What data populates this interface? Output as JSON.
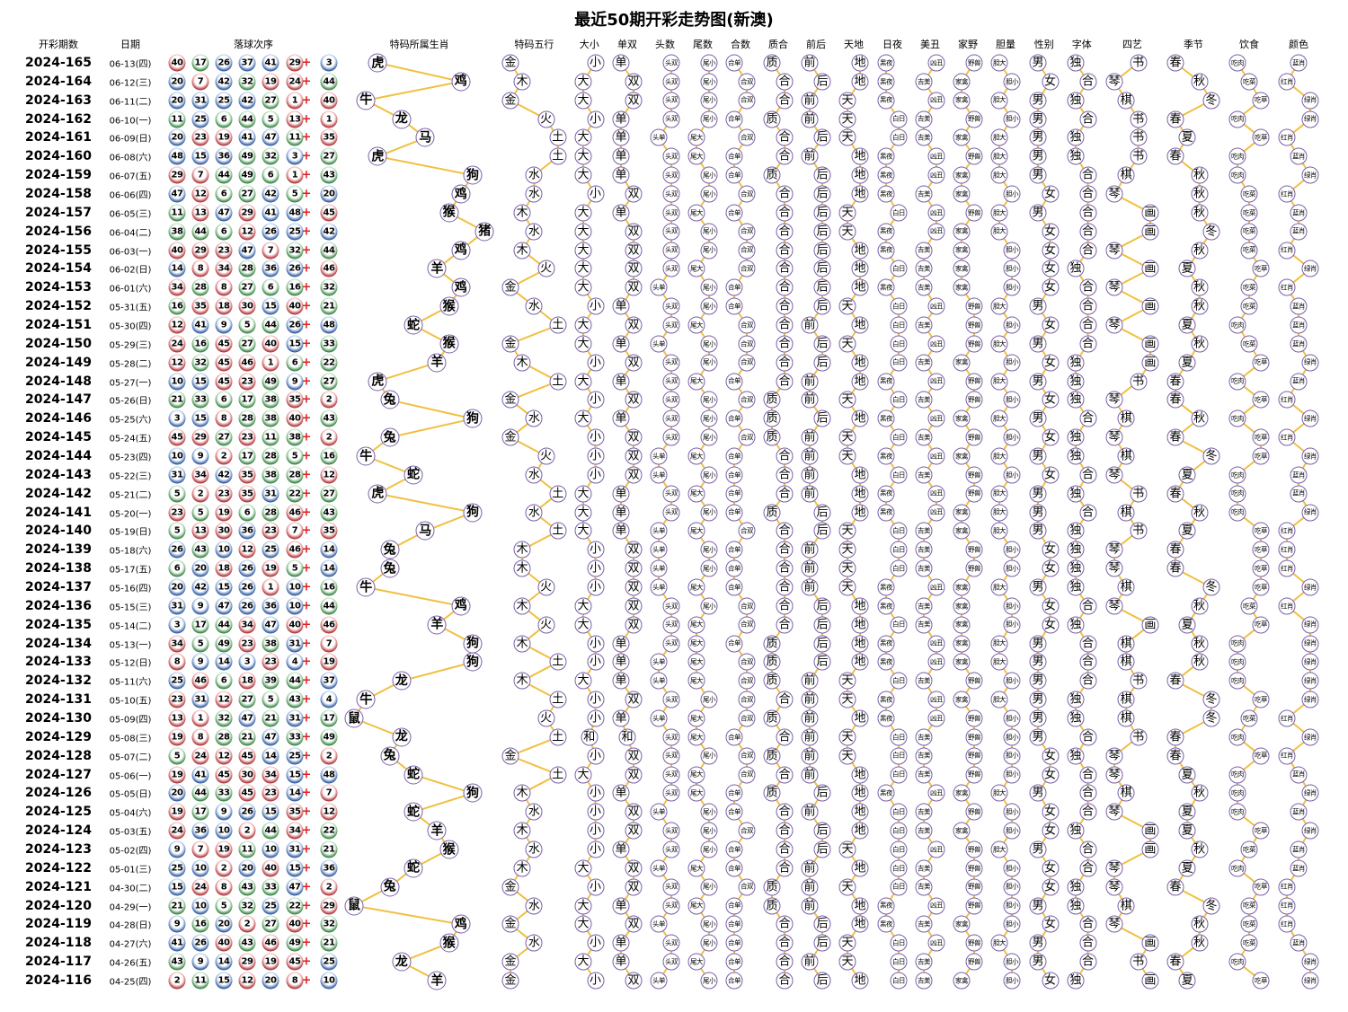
{
  "title": "最近50期开彩走势图(新澳)",
  "headers": {
    "issue": "开彩期数",
    "date": "日期",
    "balls": "落球次序"
  },
  "colors": {
    "line": "#f0c040",
    "node_border": "#7a5fa8",
    "ball_red": "#d9262c",
    "ball_blue": "#1f5fc4",
    "ball_green": "#2a9b3a",
    "plus": "#dd2222"
  },
  "ball_color_groups": {
    "red": [
      1,
      2,
      7,
      8,
      12,
      13,
      18,
      19,
      23,
      24,
      29,
      30,
      34,
      35,
      40,
      45,
      46
    ],
    "blue": [
      3,
      4,
      9,
      10,
      14,
      15,
      20,
      25,
      26,
      31,
      36,
      37,
      41,
      42,
      47,
      48
    ],
    "green": [
      5,
      6,
      11,
      16,
      17,
      21,
      22,
      27,
      28,
      32,
      33,
      38,
      39,
      43,
      44,
      49
    ]
  },
  "plus_sign": "+",
  "columns": [
    {
      "header": "特码所属生肖",
      "options": [
        "鼠",
        "牛",
        "虎",
        "兔",
        "龙",
        "蛇",
        "马",
        "羊",
        "猴",
        "鸡",
        "狗",
        "猪"
      ]
    },
    {
      "header": "特码五行",
      "options": [
        "金",
        "木",
        "水",
        "火",
        "土"
      ]
    },
    {
      "header": "大小",
      "options": [
        "大",
        "小"
      ]
    },
    {
      "header": "单双",
      "options": [
        "单",
        "双"
      ]
    },
    {
      "header": "头数",
      "options": [
        "头单",
        "头双"
      ]
    },
    {
      "header": "尾数",
      "options": [
        "尾大",
        "尾小"
      ]
    },
    {
      "header": "合数",
      "options": [
        "合单",
        "合双"
      ]
    },
    {
      "header": "质合",
      "options": [
        "质",
        "合"
      ]
    },
    {
      "header": "前后",
      "options": [
        "前",
        "后"
      ]
    },
    {
      "header": "天地",
      "options": [
        "天",
        "地"
      ]
    },
    {
      "header": "日夜",
      "options": [
        "黑夜",
        "白日"
      ]
    },
    {
      "header": "美丑",
      "options": [
        "吉美",
        "凶丑"
      ]
    },
    {
      "header": "家野",
      "options": [
        "家禽",
        "野兽"
      ]
    },
    {
      "header": "胆量",
      "options": [
        "胆大",
        "胆小"
      ]
    },
    {
      "header": "性别",
      "options": [
        "男",
        "女"
      ]
    },
    {
      "header": "字体",
      "options": [
        "独",
        "合"
      ]
    },
    {
      "header": "四艺",
      "options": [
        "琴",
        "棋",
        "书",
        "画"
      ]
    },
    {
      "header": "季节",
      "options": [
        "春",
        "夏",
        "秋",
        "冬"
      ]
    },
    {
      "header": "饮食",
      "options": [
        "吃肉",
        "吃菜",
        "吃草"
      ]
    },
    {
      "header": "颜色",
      "options": [
        "红肖",
        "蓝肖",
        "绿肖"
      ]
    }
  ],
  "chart_data": {
    "type": "table",
    "title": "最近50期开彩走势图(新澳)",
    "rows": [
      {
        "issue": "2024-165",
        "date": "06-13(四)",
        "balls": [
          40,
          17,
          26,
          37,
          41,
          29,
          3
        ],
        "attrs": "虎 金 小 单 头双 尾小 合单 质 前 地 黑夜 凶丑 野兽 胆大 男 独 书 春 吃肉 蓝肖"
      },
      {
        "issue": "2024-164",
        "date": "06-12(三)",
        "balls": [
          20,
          7,
          42,
          32,
          19,
          24,
          44
        ],
        "attrs": "鸡 木 大 双 头双 尾小 合双 合 后 地 黑夜 吉美 家禽 胆小 女 合 琴 秋 吃菜 红肖"
      },
      {
        "issue": "2024-163",
        "date": "06-11(二)",
        "balls": [
          20,
          31,
          25,
          42,
          27,
          1,
          40
        ],
        "attrs": "牛 金 大 双 头双 尾小 合双 合 前 天 黑夜 凶丑 家禽 胆大 男 独 棋 冬 吃草 绿肖"
      },
      {
        "issue": "2024-162",
        "date": "06-10(一)",
        "balls": [
          11,
          25,
          6,
          44,
          5,
          13,
          1
        ],
        "attrs": "龙 火 小 单 头双 尾小 合单 质 前 天 白日 吉美 野兽 胆小 男 合 书 春 吃肉 绿肖"
      },
      {
        "issue": "2024-161",
        "date": "06-09(日)",
        "balls": [
          20,
          23,
          19,
          41,
          47,
          11,
          35
        ],
        "attrs": "马 土 大 单 头单 尾大 合双 合 后 天 白日 吉美 家禽 胆大 男 独 书 夏 吃草 红肖"
      },
      {
        "issue": "2024-160",
        "date": "06-08(六)",
        "balls": [
          48,
          15,
          36,
          49,
          32,
          3,
          27
        ],
        "attrs": "虎 土 大 单 头双 尾大 合单 合 前 地 黑夜 凶丑 野兽 胆大 男 独 书 春 吃肉 蓝肖"
      },
      {
        "issue": "2024-159",
        "date": "06-07(五)",
        "balls": [
          29,
          7,
          44,
          49,
          6,
          1,
          43
        ],
        "attrs": "狗 水 大 单 头双 尾小 合单 质 后 地 黑夜 凶丑 家禽 胆大 男 合 棋 秋 吃肉 绿肖"
      },
      {
        "issue": "2024-158",
        "date": "06-06(四)",
        "balls": [
          47,
          12,
          6,
          27,
          42,
          5,
          20
        ],
        "attrs": "鸡 水 小 双 头双 尾小 合双 合 后 地 黑夜 吉美 家禽 胆小 女 合 琴 秋 吃菜 红肖"
      },
      {
        "issue": "2024-157",
        "date": "06-05(三)",
        "balls": [
          11,
          13,
          47,
          29,
          41,
          48,
          45
        ],
        "attrs": "猴 木 大 单 头双 尾大 合单 合 后 天 白日 凶丑 野兽 胆大 男 合 画 秋 吃菜 蓝肖"
      },
      {
        "issue": "2024-156",
        "date": "06-04(二)",
        "balls": [
          38,
          44,
          6,
          12,
          26,
          25,
          42
        ],
        "attrs": "猪 水 大 双 头双 尾小 合双 合 后 天 黑夜 凶丑 家禽 胆大 女 合 画 冬 吃菜 蓝肖"
      },
      {
        "issue": "2024-155",
        "date": "06-03(一)",
        "balls": [
          40,
          29,
          23,
          47,
          7,
          32,
          44
        ],
        "attrs": "鸡 木 大 双 头双 尾小 合双 合 后 地 黑夜 吉美 家禽 胆小 女 合 琴 秋 吃菜 红肖"
      },
      {
        "issue": "2024-154",
        "date": "06-02(日)",
        "balls": [
          14,
          8,
          34,
          28,
          36,
          26,
          46
        ],
        "attrs": "羊 火 大 双 头双 尾大 合双 合 后 地 白日 吉美 家禽 胆小 女 独 画 夏 吃草 绿肖"
      },
      {
        "issue": "2024-153",
        "date": "06-01(六)",
        "balls": [
          34,
          28,
          8,
          27,
          6,
          16,
          32
        ],
        "attrs": "鸡 金 大 双 头单 尾小 合单 合 后 地 黑夜 吉美 家禽 胆小 女 合 琴 秋 吃菜 红肖"
      },
      {
        "issue": "2024-152",
        "date": "05-31(五)",
        "balls": [
          16,
          35,
          18,
          30,
          15,
          40,
          21
        ],
        "attrs": "猴 水 小 单 头双 尾小 合单 合 后 天 白日 凶丑 野兽 胆大 男 合 画 秋 吃菜 蓝肖"
      },
      {
        "issue": "2024-151",
        "date": "05-30(四)",
        "balls": [
          12,
          41,
          9,
          5,
          44,
          26,
          48
        ],
        "attrs": "蛇 土 大 双 头双 尾大 合双 合 前 地 白日 吉美 野兽 胆小 女 合 琴 夏 吃肉 蓝肖"
      },
      {
        "issue": "2024-150",
        "date": "05-29(三)",
        "balls": [
          24,
          16,
          45,
          27,
          40,
          15,
          33
        ],
        "attrs": "猴 金 大 单 头单 尾小 合双 合 后 天 白日 凶丑 野兽 胆大 男 合 画 秋 吃菜 蓝肖"
      },
      {
        "issue": "2024-149",
        "date": "05-28(二)",
        "balls": [
          12,
          32,
          45,
          46,
          1,
          6,
          22
        ],
        "attrs": "羊 木 小 双 头双 尾小 合双 合 后 地 白日 吉美 家禽 胆小 女 独 画 夏 吃草 绿肖"
      },
      {
        "issue": "2024-148",
        "date": "05-27(一)",
        "balls": [
          10,
          15,
          45,
          23,
          49,
          9,
          27
        ],
        "attrs": "虎 土 大 单 头双 尾大 合单 合 前 地 黑夜 凶丑 野兽 胆大 男 独 书 春 吃肉 蓝肖"
      },
      {
        "issue": "2024-147",
        "date": "05-26(日)",
        "balls": [
          21,
          33,
          6,
          17,
          38,
          35,
          2
        ],
        "attrs": "兔 金 小 双 头双 尾小 合双 质 前 天 白日 吉美 野兽 胆小 女 独 琴 春 吃草 红肖"
      },
      {
        "issue": "2024-146",
        "date": "05-25(六)",
        "balls": [
          3,
          15,
          8,
          28,
          38,
          40,
          43
        ],
        "attrs": "狗 水 大 单 头双 尾小 合单 质 后 地 黑夜 凶丑 家禽 胆大 男 合 棋 秋 吃肉 绿肖"
      },
      {
        "issue": "2024-145",
        "date": "05-24(五)",
        "balls": [
          45,
          29,
          27,
          23,
          11,
          38,
          2
        ],
        "attrs": "兔 金 小 双 头双 尾小 合双 质 前 天 白日 吉美 野兽 胆小 女 独 琴 春 吃草 红肖"
      },
      {
        "issue": "2024-144",
        "date": "05-23(四)",
        "balls": [
          10,
          9,
          2,
          17,
          28,
          5,
          16
        ],
        "attrs": "牛 火 小 双 头单 尾大 合单 合 前 天 黑夜 凶丑 家禽 胆大 男 独 棋 冬 吃草 绿肖"
      },
      {
        "issue": "2024-143",
        "date": "05-22(三)",
        "balls": [
          31,
          34,
          42,
          35,
          38,
          28,
          12
        ],
        "attrs": "蛇 水 小 双 头单 尾小 合单 合 前 地 白日 吉美 野兽 胆小 女 合 琴 夏 吃肉 蓝肖"
      },
      {
        "issue": "2024-142",
        "date": "05-21(二)",
        "balls": [
          5,
          2,
          23,
          35,
          31,
          22,
          27
        ],
        "attrs": "虎 土 大 单 头双 尾大 合单 合 前 地 黑夜 凶丑 野兽 胆大 男 独 书 春 吃肉 蓝肖"
      },
      {
        "issue": "2024-141",
        "date": "05-20(一)",
        "balls": [
          23,
          5,
          19,
          6,
          28,
          46,
          43
        ],
        "attrs": "狗 水 大 单 头双 尾小 合单 质 后 地 黑夜 凶丑 家禽 胆大 男 合 棋 秋 吃肉 绿肖"
      },
      {
        "issue": "2024-140",
        "date": "05-19(日)",
        "balls": [
          5,
          13,
          30,
          36,
          23,
          7,
          35
        ],
        "attrs": "马 土 大 单 头单 尾大 合双 合 后 天 白日 吉美 家禽 胆大 男 独 书 夏 吃草 红肖"
      },
      {
        "issue": "2024-139",
        "date": "05-18(六)",
        "balls": [
          26,
          43,
          10,
          12,
          25,
          46,
          14
        ],
        "attrs": "兔 木 小 双 头单 尾小 合单 合 前 天 白日 吉美 野兽 胆小 女 独 琴 春 吃草 红肖"
      },
      {
        "issue": "2024-138",
        "date": "05-17(五)",
        "balls": [
          6,
          20,
          18,
          26,
          19,
          5,
          14
        ],
        "attrs": "兔 木 小 双 头单 尾小 合单 合 前 天 白日 吉美 野兽 胆小 女 独 琴 春 吃草 红肖"
      },
      {
        "issue": "2024-137",
        "date": "05-16(四)",
        "balls": [
          20,
          42,
          15,
          26,
          1,
          10,
          16
        ],
        "attrs": "牛 火 小 双 头单 尾大 合单 合 前 天 黑夜 凶丑 家禽 胆大 男 独 棋 冬 吃草 绿肖"
      },
      {
        "issue": "2024-136",
        "date": "05-15(三)",
        "balls": [
          31,
          9,
          47,
          26,
          36,
          10,
          44
        ],
        "attrs": "鸡 木 大 双 头双 尾小 合双 合 后 地 黑夜 吉美 家禽 胆小 女 合 琴 秋 吃菜 红肖"
      },
      {
        "issue": "2024-135",
        "date": "05-14(二)",
        "balls": [
          3,
          17,
          44,
          34,
          47,
          40,
          46
        ],
        "attrs": "羊 火 大 双 头双 尾大 合双 合 后 地 白日 吉美 家禽 胆小 女 独 画 夏 吃草 绿肖"
      },
      {
        "issue": "2024-134",
        "date": "05-13(一)",
        "balls": [
          34,
          5,
          49,
          23,
          38,
          31,
          7
        ],
        "attrs": "狗 木 小 单 头双 尾大 合单 质 后 地 黑夜 凶丑 家禽 胆大 男 合 棋 秋 吃肉 绿肖"
      },
      {
        "issue": "2024-133",
        "date": "05-12(日)",
        "balls": [
          8,
          9,
          14,
          3,
          23,
          4,
          19
        ],
        "attrs": "狗 土 小 单 头单 尾大 合双 质 后 地 黑夜 凶丑 家禽 胆大 男 合 棋 秋 吃肉 绿肖"
      },
      {
        "issue": "2024-132",
        "date": "05-11(六)",
        "balls": [
          25,
          46,
          6,
          18,
          39,
          44,
          37
        ],
        "attrs": "龙 木 大 单 头单 尾大 合双 质 前 天 白日 吉美 野兽 胆小 男 合 书 春 吃肉 绿肖"
      },
      {
        "issue": "2024-131",
        "date": "05-10(五)",
        "balls": [
          23,
          31,
          12,
          27,
          5,
          43,
          4
        ],
        "attrs": "牛 土 小 双 头双 尾小 合双 合 前 天 黑夜 凶丑 家禽 胆大 男 独 棋 冬 吃草 绿肖"
      },
      {
        "issue": "2024-130",
        "date": "05-09(四)",
        "balls": [
          13,
          1,
          32,
          47,
          21,
          31,
          17
        ],
        "attrs": "鼠 火 小 单 头单 尾大 合双 质 前 地 黑夜 凶丑 野兽 胆小 男 独 棋 冬 吃菜 红肖"
      },
      {
        "issue": "2024-129",
        "date": "05-08(三)",
        "balls": [
          19,
          8,
          28,
          21,
          47,
          33,
          49
        ],
        "attrs": "龙 土 和 和 头双 尾大 合单 合 前 天 白日 吉美 野兽 胆小 男 合 书 春 吃肉 绿肖"
      },
      {
        "issue": "2024-128",
        "date": "05-07(二)",
        "balls": [
          5,
          24,
          12,
          45,
          14,
          25,
          2
        ],
        "attrs": "兔 金 小 双 头双 尾小 合双 质 前 天 白日 吉美 野兽 胆小 女 独 琴 春 吃草 红肖"
      },
      {
        "issue": "2024-127",
        "date": "05-06(一)",
        "balls": [
          19,
          41,
          45,
          30,
          34,
          15,
          48
        ],
        "attrs": "蛇 土 大 双 头双 尾大 合双 合 前 地 白日 吉美 野兽 胆小 女 合 琴 夏 吃肉 蓝肖"
      },
      {
        "issue": "2024-126",
        "date": "05-05(日)",
        "balls": [
          20,
          44,
          33,
          45,
          23,
          14,
          7
        ],
        "attrs": "狗 木 小 单 头双 尾大 合单 质 后 地 黑夜 凶丑 家禽 胆大 男 合 棋 秋 吃肉 绿肖"
      },
      {
        "issue": "2024-125",
        "date": "05-04(六)",
        "balls": [
          19,
          17,
          9,
          26,
          15,
          35,
          12
        ],
        "attrs": "蛇 水 小 双 头单 尾小 合单 合 前 地 白日 吉美 野兽 胆小 女 合 琴 夏 吃肉 蓝肖"
      },
      {
        "issue": "2024-124",
        "date": "05-03(五)",
        "balls": [
          24,
          36,
          10,
          2,
          44,
          34,
          22
        ],
        "attrs": "羊 木 小 双 头双 尾小 合双 合 后 地 白日 吉美 家禽 胆小 女 独 画 夏 吃草 绿肖"
      },
      {
        "issue": "2024-123",
        "date": "05-02(四)",
        "balls": [
          9,
          7,
          19,
          11,
          10,
          31,
          21
        ],
        "attrs": "猴 水 小 单 头双 尾小 合单 合 后 天 白日 凶丑 野兽 胆大 男 合 画 秋 吃菜 蓝肖"
      },
      {
        "issue": "2024-122",
        "date": "05-01(三)",
        "balls": [
          25,
          10,
          2,
          20,
          40,
          15,
          36
        ],
        "attrs": "蛇 木 大 双 头单 尾大 合单 合 前 地 白日 吉美 野兽 胆小 女 合 琴 夏 吃肉 蓝肖"
      },
      {
        "issue": "2024-121",
        "date": "04-30(二)",
        "balls": [
          15,
          24,
          8,
          43,
          33,
          47,
          2
        ],
        "attrs": "兔 金 小 双 头双 尾小 合双 质 前 天 白日 吉美 野兽 胆小 女 独 琴 春 吃草 红肖"
      },
      {
        "issue": "2024-120",
        "date": "04-29(一)",
        "balls": [
          21,
          10,
          5,
          32,
          25,
          22,
          29
        ],
        "attrs": "鼠 水 大 单 头双 尾大 合单 质 前 地 黑夜 凶丑 野兽 胆小 男 独 棋 冬 吃菜 红肖"
      },
      {
        "issue": "2024-119",
        "date": "04-28(日)",
        "balls": [
          9,
          16,
          20,
          2,
          27,
          40,
          32
        ],
        "attrs": "鸡 金 大 双 头单 尾小 合单 合 后 地 黑夜 吉美 家禽 胆小 女 合 琴 秋 吃菜 红肖"
      },
      {
        "issue": "2024-118",
        "date": "04-27(六)",
        "balls": [
          41,
          26,
          40,
          43,
          46,
          49,
          21
        ],
        "attrs": "猴 水 小 单 头双 尾小 合单 合 后 天 白日 凶丑 野兽 胆大 男 合 画 秋 吃菜 蓝肖"
      },
      {
        "issue": "2024-117",
        "date": "04-26(五)",
        "balls": [
          43,
          9,
          14,
          29,
          19,
          45,
          25
        ],
        "attrs": "龙 金 大 单 头双 尾大 合单 合 前 天 白日 吉美 野兽 胆小 男 合 书 春 吃肉 绿肖"
      },
      {
        "issue": "2024-116",
        "date": "04-25(四)",
        "balls": [
          2,
          11,
          15,
          12,
          20,
          8,
          10
        ],
        "attrs": "羊 金 小 双 头单 尾小 合单 合 后 地 白日 吉美 家禽 胆小 女 独 画 夏 吃草 绿肖"
      }
    ]
  }
}
